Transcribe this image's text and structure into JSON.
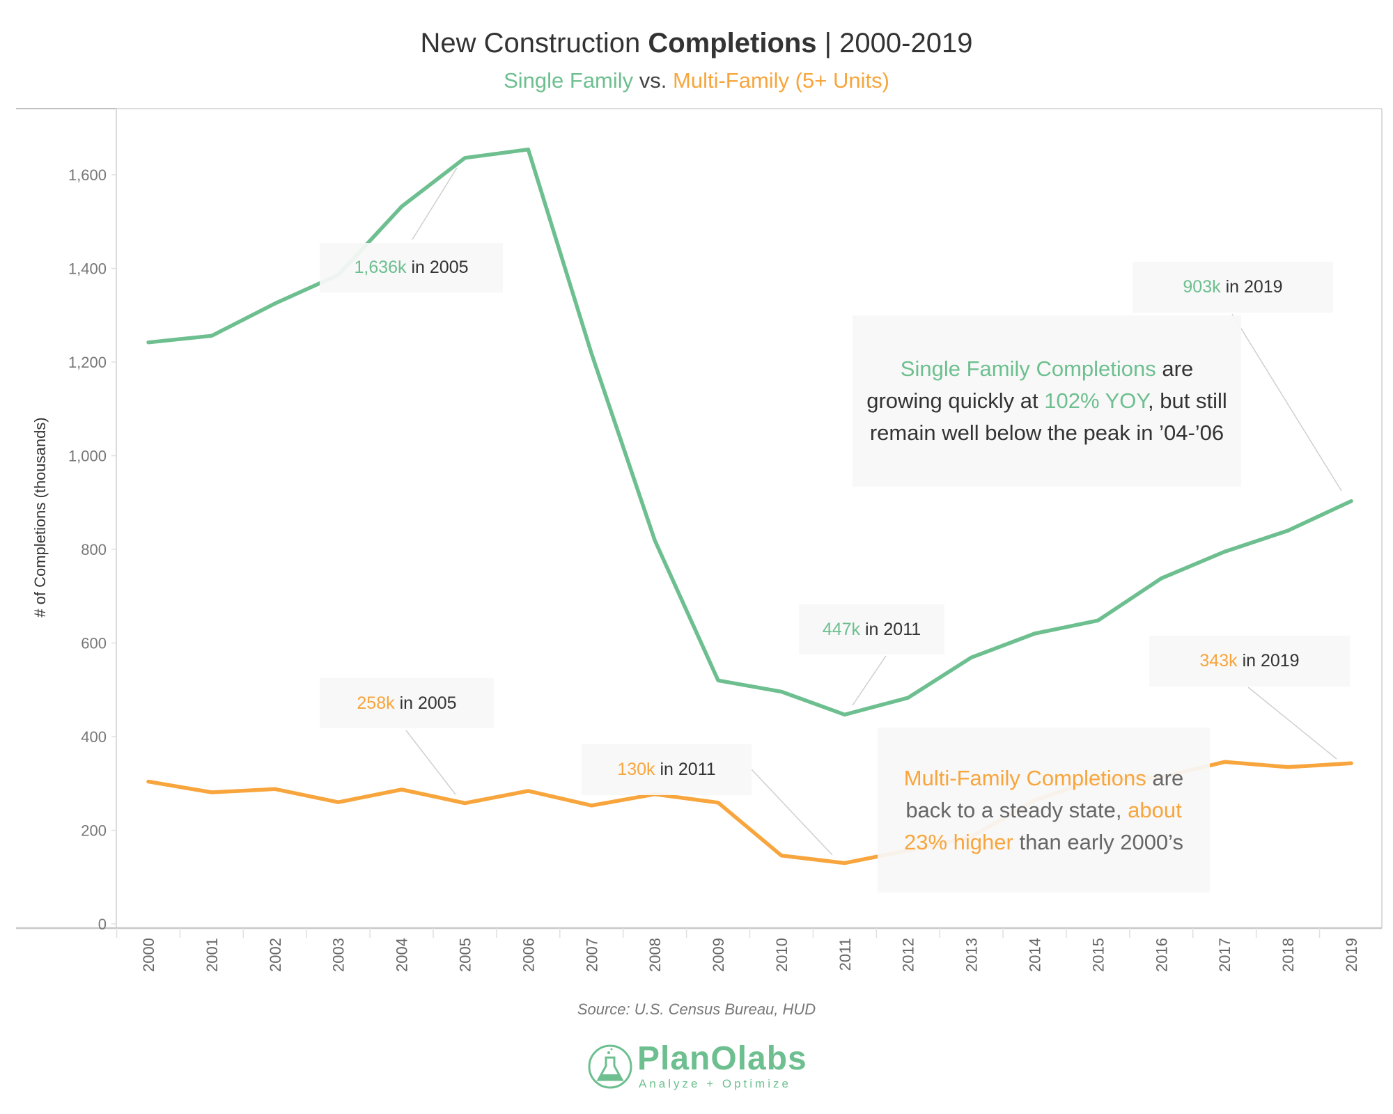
{
  "title": {
    "part1": "New Construction ",
    "bold": "Completions",
    "part2": " | 2000-2019"
  },
  "subtitle": {
    "sf": "Single Family",
    "vs": " vs. ",
    "mf": "Multi-Family (5+ Units)"
  },
  "colors": {
    "single_family": "#6dbf8f",
    "multi_family": "#f7a53c",
    "annotation_bg": "#f8f8f8",
    "gridline": "#d9d9d9"
  },
  "chart_data": {
    "type": "line",
    "ylabel": "# of Completions (thousands)",
    "xlabel": "",
    "ylim": [
      0,
      1700
    ],
    "yticks": [
      0,
      200,
      400,
      600,
      800,
      1000,
      1200,
      1400,
      1600
    ],
    "ytick_labels": [
      "0",
      "200",
      "400",
      "600",
      "800",
      "1,000",
      "1,200",
      "1,400",
      "1,600"
    ],
    "grid": false,
    "legend": "none",
    "x": [
      "2000",
      "2001",
      "2002",
      "2003",
      "2004",
      "2005",
      "2006",
      "2007",
      "2008",
      "2009",
      "2010",
      "2011",
      "2012",
      "2013",
      "2014",
      "2015",
      "2016",
      "2017",
      "2018",
      "2019"
    ],
    "series": [
      {
        "key": "single_family",
        "values": [
          1242,
          1256,
          1325,
          1386,
          1532,
          1636,
          1654,
          1218,
          819,
          520,
          496,
          447,
          483,
          569,
          620,
          648,
          738,
          795,
          840,
          903
        ]
      },
      {
        "key": "multi_family",
        "values": [
          304,
          281,
          288,
          260,
          287,
          258,
          284,
          253,
          277,
          259,
          146,
          130,
          157,
          186,
          264,
          310,
          313,
          346,
          335,
          343
        ]
      }
    ]
  },
  "annotations": {
    "sf_2005": {
      "value": "1,636k",
      "rest": " in 2005"
    },
    "sf_2019": {
      "value": "903k",
      "rest": " in 2019"
    },
    "sf_2011": {
      "value": "447k",
      "rest": " in 2011"
    },
    "mf_2005": {
      "value": "258k",
      "rest": " in 2005"
    },
    "mf_2011": {
      "value": "130k",
      "rest": " in 2011"
    },
    "mf_2019": {
      "value": "343k",
      "rest": " in 2019"
    },
    "sf_note": {
      "h1": "Single Family Completions",
      "t1": " are growing quickly at ",
      "h2": "102% YOY",
      "t2": ", but still remain well below the peak in ’04-’06"
    },
    "mf_note": {
      "h1": "Multi-Family Completions",
      "t1": " are back to a steady state, ",
      "h2": "about 23% higher",
      "t2": " than early 2000’s"
    }
  },
  "source": "Source: U.S. Census Bureau, HUD",
  "logo": {
    "name": "PlanOlabs",
    "tagline": "Analyze + Optimize",
    "icon": "flask-icon"
  }
}
